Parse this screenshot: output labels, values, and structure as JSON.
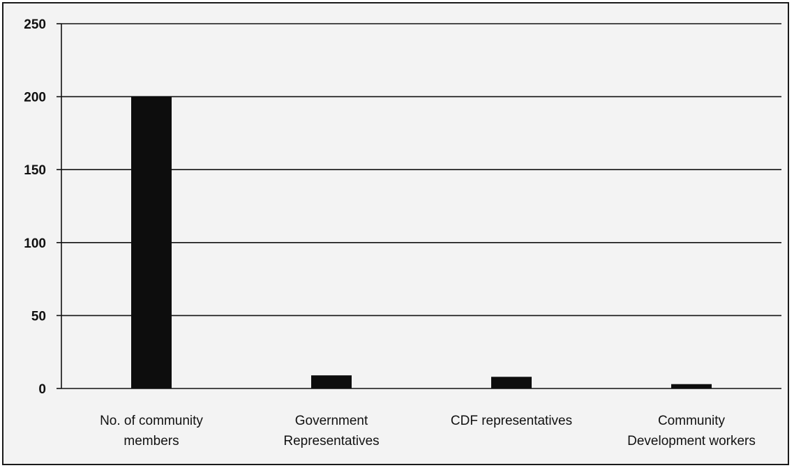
{
  "chart_data": {
    "type": "bar",
    "title": "",
    "xlabel": "",
    "ylabel": "",
    "categories": [
      [
        "No. of community",
        "members"
      ],
      [
        "Government",
        "Representatives"
      ],
      [
        "CDF representatives"
      ],
      [
        "Community",
        "Development workers"
      ]
    ],
    "values": [
      200,
      9,
      8,
      3
    ],
    "ylim": [
      0,
      250
    ],
    "yticks": [
      0,
      50,
      100,
      150,
      200,
      250
    ],
    "grid": true,
    "bar_color": "#0d0d0d",
    "grid_color": "#111111"
  }
}
